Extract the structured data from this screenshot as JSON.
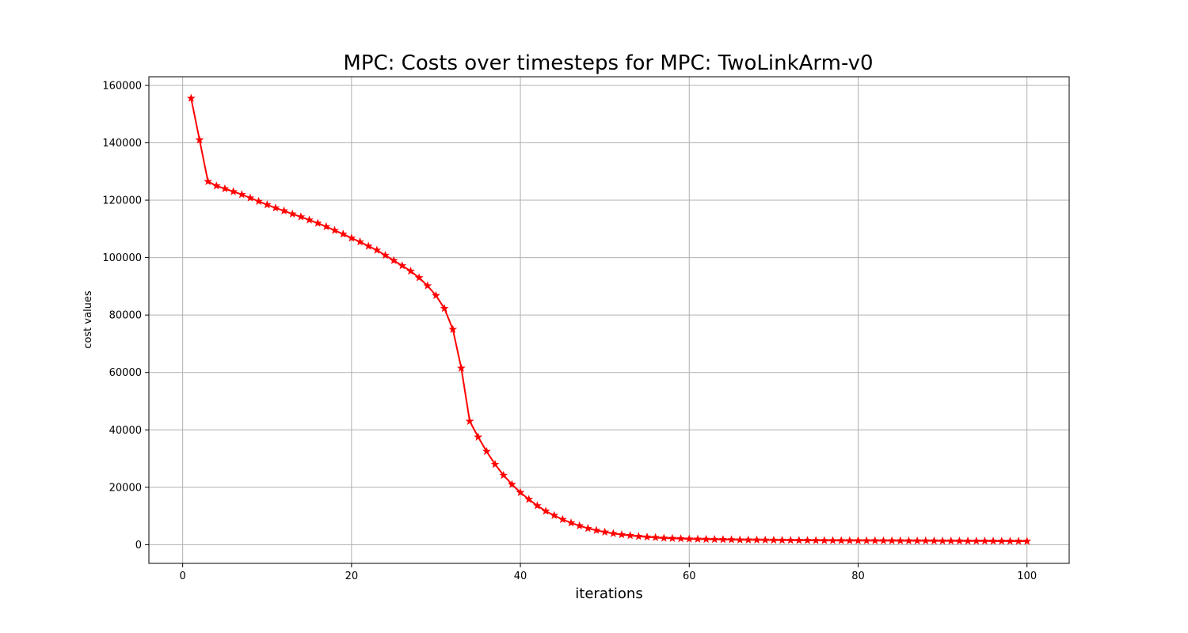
{
  "chart_data": {
    "type": "line",
    "title": "MPC: Costs over timesteps for MPC: TwoLinkArm-v0",
    "xlabel": "iterations",
    "ylabel": "cost values",
    "xlim": [
      -4,
      105
    ],
    "ylim": [
      -6500,
      163000
    ],
    "xticks": [
      0,
      20,
      40,
      60,
      80,
      100
    ],
    "yticks": [
      0,
      20000,
      40000,
      60000,
      80000,
      100000,
      120000,
      140000,
      160000
    ],
    "grid": true,
    "marker": "star",
    "color": "#ff0000",
    "series": [
      {
        "x": [
          1,
          2,
          3,
          4,
          5,
          6,
          7,
          8,
          9,
          10,
          11,
          12,
          13,
          14,
          15,
          16,
          17,
          18,
          19,
          20,
          21,
          22,
          23,
          24,
          25,
          26,
          27,
          28,
          29,
          30,
          31,
          32,
          33,
          34,
          35,
          36,
          37,
          38,
          39,
          40,
          41,
          42,
          43,
          44,
          45,
          46,
          47,
          48,
          49,
          50,
          51,
          52,
          53,
          54,
          55,
          56,
          57,
          58,
          59,
          60,
          61,
          62,
          63,
          64,
          65,
          66,
          67,
          68,
          69,
          70,
          71,
          72,
          73,
          74,
          75,
          76,
          77,
          78,
          79,
          80,
          81,
          82,
          83,
          84,
          85,
          86,
          87,
          88,
          89,
          90,
          91,
          92,
          93,
          94,
          95,
          96,
          97,
          98,
          99,
          100
        ],
        "values": [
          155500,
          141000,
          126500,
          125000,
          124000,
          123000,
          122000,
          120800,
          119600,
          118400,
          117300,
          116300,
          115200,
          114200,
          113100,
          112000,
          110800,
          109500,
          108200,
          106800,
          105500,
          104000,
          102600,
          100800,
          99000,
          97200,
          95300,
          93000,
          90200,
          86800,
          82300,
          75000,
          61500,
          43000,
          37500,
          32500,
          28000,
          24200,
          21000,
          18200,
          15800,
          13600,
          11700,
          10200,
          8800,
          7600,
          6600,
          5700,
          5000,
          4400,
          3900,
          3500,
          3200,
          2900,
          2700,
          2500,
          2300,
          2200,
          2100,
          2000,
          1950,
          1900,
          1850,
          1800,
          1750,
          1700,
          1680,
          1650,
          1620,
          1600,
          1570,
          1550,
          1530,
          1510,
          1490,
          1470,
          1450,
          1440,
          1430,
          1420,
          1410,
          1400,
          1390,
          1380,
          1370,
          1360,
          1350,
          1340,
          1330,
          1320,
          1310,
          1300,
          1290,
          1280,
          1270,
          1260,
          1250,
          1240,
          1230,
          1220
        ]
      }
    ]
  }
}
